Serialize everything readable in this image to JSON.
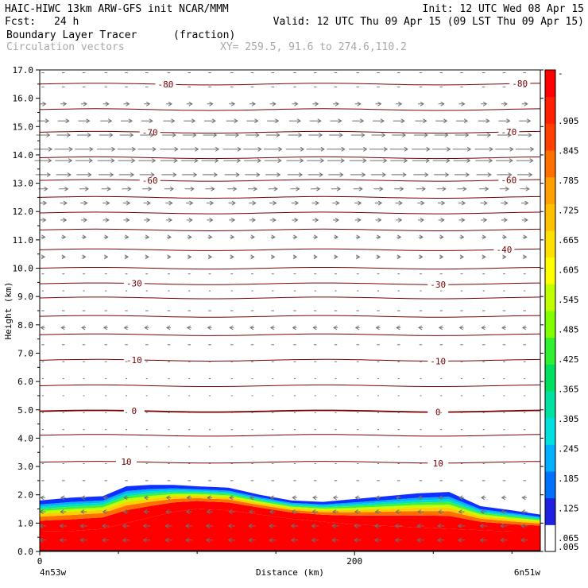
{
  "header": {
    "title": "HAIC-HIWC 13km ARW-GFS init   NCAR/MMM",
    "init": "Init: 12 UTC Wed 08 Apr 15",
    "fcst_label": "Fcst:",
    "fcst_value": "24 h",
    "valid": "Valid: 12 UTC Thu 09 Apr 15 (09 LST Thu 09 Apr 15)",
    "field_name": "Boundary Layer Tracer",
    "field_units": "(fraction)",
    "vector_name": "Circulation vectors",
    "xy_text": "XY= 259.5, 91.6 to 274.6,110.2"
  },
  "colors": {
    "contour": "#7a0000",
    "arrow": "#707070",
    "colorbar": [
      "#ffffff",
      "#2020e0",
      "#0070ff",
      "#00b0ff",
      "#00e0e0",
      "#00e0a0",
      "#00e060",
      "#30f030",
      "#80ff00",
      "#c0ff00",
      "#ffff00",
      "#ffe000",
      "#ffc000",
      "#ffa000",
      "#ff7000",
      "#ff4000",
      "#ff2000",
      "#ff0000"
    ]
  },
  "chart_data": {
    "type": "heatmap",
    "title": "Boundary Layer Tracer (fraction)",
    "xlabel": "Distance (km)",
    "ylabel": "Height (km)",
    "xlim": [
      0,
      318
    ],
    "ylim": [
      0,
      17
    ],
    "x_ticks": [
      0,
      200
    ],
    "x_tick_labels": [
      "0",
      "200"
    ],
    "x_end_labels": [
      "4n53w",
      "6n51w"
    ],
    "y_ticks": [
      0,
      1,
      2,
      3,
      4,
      5,
      6,
      7,
      8,
      9,
      10,
      11,
      12,
      13,
      14,
      15,
      16,
      17
    ],
    "y_tick_labels": [
      "0.0",
      "1.0",
      "2.0",
      "3.0",
      "4.0",
      "5.0",
      "6.0",
      "7.0",
      "8.0",
      "9.0",
      "10.0",
      "11.0",
      "12.0",
      "13.0",
      "14.0",
      "15.0",
      "16.0",
      "17.0"
    ],
    "colorbar_levels": [
      "-",
      ".905",
      ".845",
      ".785",
      ".725",
      ".665",
      ".605",
      ".545",
      ".485",
      ".425",
      ".365",
      ".305",
      ".245",
      ".185",
      ".125",
      ".065",
      ".005"
    ],
    "tracer_profile": {
      "x": [
        0,
        20,
        40,
        55,
        70,
        85,
        100,
        120,
        140,
        160,
        180,
        200,
        220,
        240,
        260,
        280,
        300,
        318
      ],
      "top": [
        1.8,
        1.9,
        1.95,
        2.3,
        2.35,
        2.35,
        2.3,
        2.25,
        2.0,
        1.8,
        1.75,
        1.85,
        1.95,
        2.05,
        2.1,
        1.6,
        1.45,
        1.3
      ],
      "red_top": [
        0.7,
        0.72,
        0.8,
        1.0,
        1.2,
        1.4,
        1.5,
        1.45,
        1.3,
        1.15,
        1.05,
        0.95,
        0.9,
        0.85,
        0.8,
        0.75,
        0.7,
        0.7
      ]
    },
    "temperature_contours": [
      {
        "label": "10",
        "height": 3.15,
        "labels_at_x": [
          55,
          253
        ]
      },
      {
        "label": "0",
        "height": 4.95,
        "labels_at_x": [
          60,
          253
        ]
      },
      {
        "label": "-10",
        "height": 6.75,
        "labels_at_x": [
          60,
          253
        ]
      },
      {
        "label": "-30",
        "height": 9.45,
        "labels_at_x": [
          60,
          253
        ]
      },
      {
        "label": "-40",
        "height": 10.65,
        "labels_at_x": [
          295
        ]
      },
      {
        "label": "-60",
        "height": 13.1,
        "labels_at_x": [
          70,
          298
        ]
      },
      {
        "label": "-70",
        "height": 14.8,
        "labels_at_x": [
          70,
          298
        ]
      },
      {
        "label": "-80",
        "height": 16.5,
        "labels_at_x": [
          80,
          305
        ]
      }
    ],
    "unlabeled_contour_heights": [
      4.1,
      5.85,
      7.65,
      8.3,
      8.95,
      10.0,
      11.35,
      11.95,
      12.5,
      13.9,
      15.6
    ],
    "circulation_vectors": {
      "rows": [
        {
          "height": 16.9,
          "u": 0.5,
          "w": 0
        },
        {
          "height": 16.4,
          "u": 0.5,
          "w": 0
        },
        {
          "height": 15.8,
          "u": 1.0,
          "w": 0
        },
        {
          "height": 15.2,
          "u": 2.0,
          "w": 0
        },
        {
          "height": 14.7,
          "u": 2.4,
          "w": 0
        },
        {
          "height": 14.2,
          "u": 3.2,
          "w": 0
        },
        {
          "height": 13.8,
          "u": 3.0,
          "w": 0
        },
        {
          "height": 13.3,
          "u": 2.6,
          "w": 0
        },
        {
          "height": 12.8,
          "u": 1.6,
          "w": 0
        },
        {
          "height": 12.3,
          "u": 1.2,
          "w": 0
        },
        {
          "height": 11.7,
          "u": 1.0,
          "w": 0
        },
        {
          "height": 11.1,
          "u": 0.7,
          "w": 0
        },
        {
          "height": 10.4,
          "u": 0.6,
          "w": 0
        },
        {
          "height": 9.8,
          "u": 0.4,
          "w": 0
        },
        {
          "height": 9.2,
          "u": 0.3,
          "w": 0
        },
        {
          "height": 8.5,
          "u": -0.5,
          "w": 0
        },
        {
          "height": 7.9,
          "u": -0.7,
          "w": 0
        },
        {
          "height": 7.3,
          "u": -0.5,
          "w": 0
        },
        {
          "height": 6.7,
          "u": -0.4,
          "w": 0
        },
        {
          "height": 6.1,
          "u": 0.2,
          "w": 0
        },
        {
          "height": 5.5,
          "u": 0.2,
          "w": 0
        },
        {
          "height": 4.9,
          "u": 0.2,
          "w": 0
        },
        {
          "height": 4.3,
          "u": 0.2,
          "w": 0
        },
        {
          "height": 3.7,
          "u": -0.2,
          "w": 0
        },
        {
          "height": 3.1,
          "u": -0.3,
          "w": 0
        },
        {
          "height": 2.5,
          "u": -0.5,
          "w": 0
        },
        {
          "height": 1.9,
          "u": -0.8,
          "w": 0
        },
        {
          "height": 1.4,
          "u": -1.0,
          "w": 0
        },
        {
          "height": 0.9,
          "u": -1.2,
          "w": 0
        },
        {
          "height": 0.4,
          "u": -1.2,
          "w": 0
        }
      ],
      "x_positions": [
        0,
        13,
        26,
        40,
        53,
        66,
        80,
        93,
        106,
        120,
        133,
        146,
        160,
        173,
        186,
        200,
        213,
        226,
        240,
        253,
        266,
        280,
        293,
        306
      ]
    }
  }
}
